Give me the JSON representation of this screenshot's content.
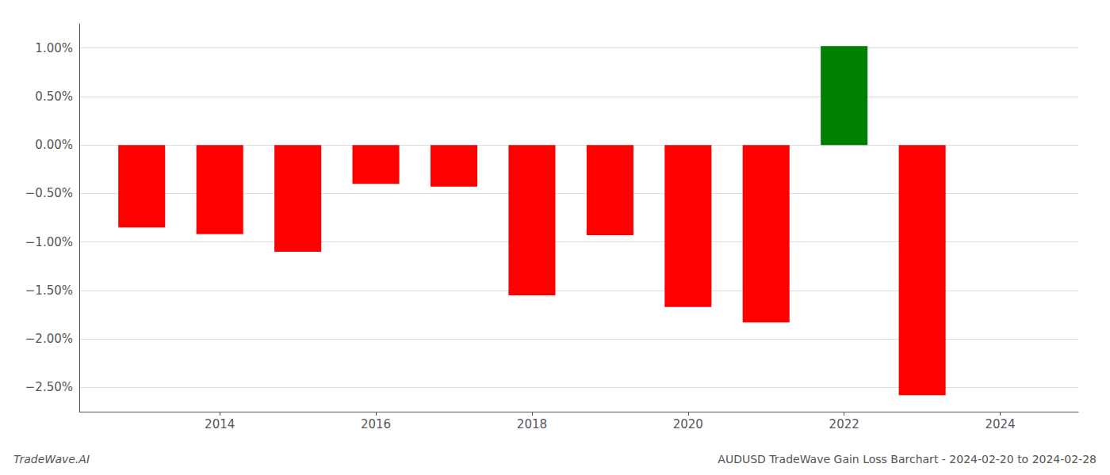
{
  "chart_data": {
    "type": "bar",
    "title": "AUDUSD TradeWave Gain Loss Barchart - 2024-02-20 to 2024-02-28",
    "annotations": [
      "TradeWave.AI"
    ],
    "x": [
      2013,
      2014,
      2015,
      2016,
      2017,
      2018,
      2019,
      2020,
      2021,
      2022,
      2023
    ],
    "values": [
      -0.85,
      -0.92,
      -1.1,
      -0.4,
      -0.43,
      -1.55,
      -0.93,
      -1.67,
      -1.83,
      1.02,
      -2.58
    ],
    "colors": [
      "#ff0000",
      "#ff0000",
      "#ff0000",
      "#ff0000",
      "#ff0000",
      "#ff0000",
      "#ff0000",
      "#ff0000",
      "#ff0000",
      "#008000",
      "#ff0000"
    ],
    "xlim": [
      2012.2,
      2025.0
    ],
    "xticks": [
      2014,
      2016,
      2018,
      2020,
      2022,
      2024
    ],
    "ylim": [
      -2.75,
      1.25
    ],
    "yticks": [
      {
        "value": -2.5,
        "label": "−2.50%"
      },
      {
        "value": -2.0,
        "label": "−2.00%"
      },
      {
        "value": -1.5,
        "label": "−1.50%"
      },
      {
        "value": -1.0,
        "label": "−1.00%"
      },
      {
        "value": -0.5,
        "label": "−0.50%"
      },
      {
        "value": 0,
        "label": "0.00%"
      },
      {
        "value": 0.5,
        "label": "0.50%"
      },
      {
        "value": 1.0,
        "label": "1.00%"
      }
    ],
    "grid": true
  }
}
